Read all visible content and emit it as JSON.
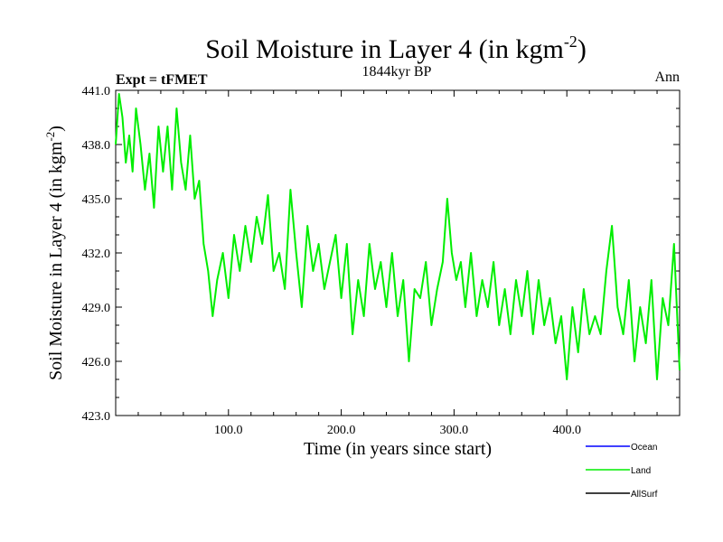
{
  "chart_data": {
    "type": "line",
    "title": "Soil Moisture in Layer 4 (in kgm",
    "title_sup": "-2",
    "title_close": ")",
    "subtitle": "1844kyr BP",
    "left_label": "Expt = tFMET",
    "right_label": "Ann",
    "xlabel": "Time (in years since start)",
    "ylabel": "Soil Moisture in Layer 4 (in kgm",
    "ylabel_sup": "-2",
    "ylabel_close": ")",
    "xlim": [
      0,
      500
    ],
    "ylim": [
      423,
      441
    ],
    "x_ticks": [
      100,
      200,
      300,
      400
    ],
    "x_tick_labels": [
      "100.0",
      "200.0",
      "300.0",
      "400.0"
    ],
    "y_ticks": [
      423,
      426,
      429,
      432,
      435,
      438,
      441
    ],
    "y_tick_labels": [
      "423.0",
      "426.0",
      "429.0",
      "432.0",
      "435.0",
      "438.0",
      "441.0"
    ],
    "legend": [
      {
        "name": "Ocean",
        "color": "#0000ff"
      },
      {
        "name": "Land",
        "color": "#00ee00"
      },
      {
        "name": "AllSurf",
        "color": "#000000"
      }
    ],
    "series": [
      {
        "name": "Land",
        "color": "#00ee00",
        "x": [
          0,
          3,
          6,
          9,
          12,
          15,
          18,
          22,
          26,
          30,
          34,
          38,
          42,
          46,
          50,
          54,
          58,
          62,
          66,
          70,
          74,
          78,
          82,
          86,
          90,
          95,
          100,
          105,
          110,
          115,
          120,
          125,
          130,
          135,
          140,
          145,
          150,
          155,
          160,
          165,
          170,
          175,
          180,
          185,
          190,
          195,
          200,
          205,
          210,
          215,
          220,
          225,
          230,
          235,
          240,
          245,
          250,
          255,
          260,
          265,
          270,
          275,
          280,
          285,
          290,
          294,
          298,
          302,
          306,
          310,
          315,
          320,
          325,
          330,
          335,
          340,
          345,
          350,
          355,
          360,
          365,
          370,
          375,
          380,
          385,
          390,
          395,
          400,
          405,
          410,
          415,
          420,
          425,
          430,
          435,
          440,
          445,
          450,
          455,
          460,
          465,
          470,
          475,
          480,
          485,
          490,
          495,
          500
        ],
        "values": [
          438.0,
          440.8,
          439.5,
          437.0,
          438.5,
          436.5,
          440.0,
          438.0,
          435.5,
          437.5,
          434.5,
          439.0,
          436.5,
          439.0,
          435.5,
          440.0,
          437.0,
          435.5,
          438.5,
          435.0,
          436.0,
          432.5,
          431.0,
          428.5,
          430.5,
          432.0,
          429.5,
          433.0,
          431.0,
          433.5,
          431.5,
          434.0,
          432.5,
          435.2,
          431.0,
          432.0,
          430.0,
          435.5,
          432.0,
          429.0,
          433.5,
          431.0,
          432.5,
          430.0,
          431.5,
          433.0,
          429.5,
          432.5,
          427.5,
          430.5,
          428.5,
          432.5,
          430.0,
          431.5,
          429.0,
          432.0,
          428.5,
          430.5,
          426.0,
          430.0,
          429.5,
          431.5,
          428.0,
          430.0,
          431.5,
          435.0,
          432.0,
          430.5,
          431.5,
          429.0,
          432.0,
          428.5,
          430.5,
          429.0,
          431.5,
          428.0,
          430.0,
          427.5,
          430.5,
          428.5,
          431.0,
          427.5,
          430.5,
          428.0,
          429.5,
          427.0,
          428.5,
          425.0,
          429.0,
          426.5,
          430.0,
          427.5,
          428.5,
          427.5,
          431.0,
          433.5,
          429.0,
          427.5,
          430.5,
          426.0,
          429.0,
          427.0,
          430.5,
          425.0,
          429.5,
          428.0,
          432.5,
          425.5
        ]
      }
    ]
  }
}
